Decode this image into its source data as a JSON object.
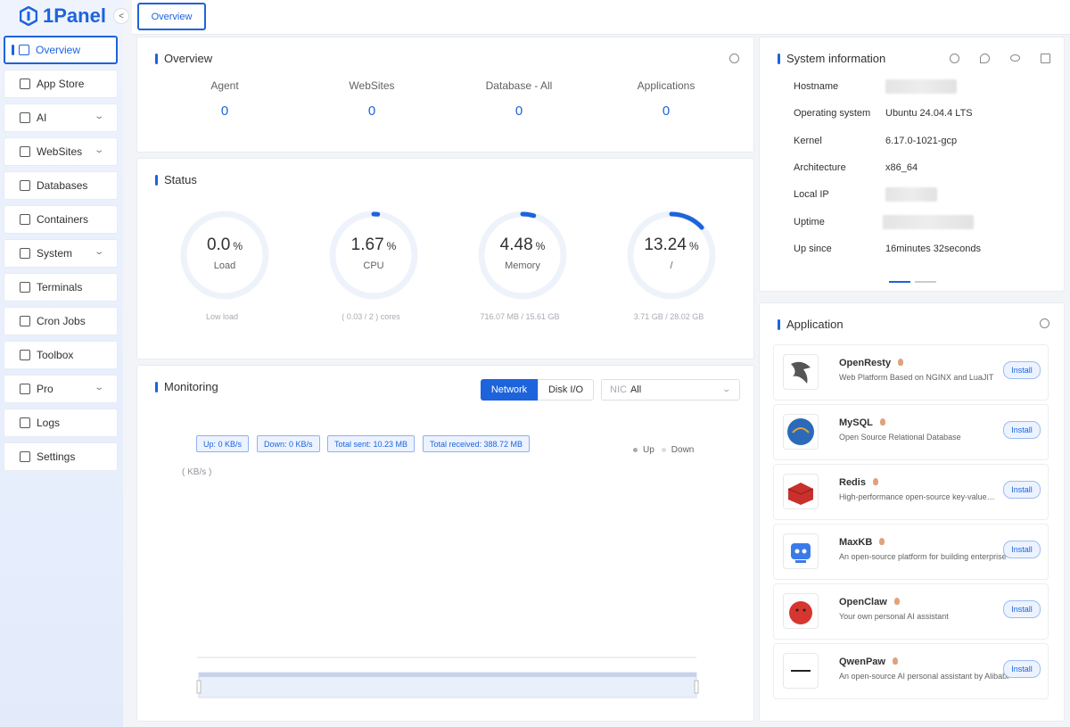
{
  "sidebar": {
    "logo": "1Panel",
    "menu": [
      {
        "label": "Overview",
        "active": true
      },
      {
        "label": "App Store"
      },
      {
        "label": "AI",
        "expandable": true
      },
      {
        "label": "WebSites",
        "expandable": true
      },
      {
        "label": "Databases"
      },
      {
        "label": "Containers"
      },
      {
        "label": "System",
        "expandable": true
      },
      {
        "label": "Terminals"
      },
      {
        "label": "Cron Jobs"
      },
      {
        "label": "Toolbox"
      },
      {
        "label": "Pro",
        "expandable": true
      },
      {
        "label": "Logs"
      },
      {
        "label": "Settings"
      }
    ]
  },
  "tabs": [
    "Overview"
  ],
  "overview": {
    "title": "Overview",
    "items": [
      {
        "label": "Agent",
        "value": 0
      },
      {
        "label": "WebSites",
        "value": 0
      },
      {
        "label": "Database - All",
        "value": 0
      },
      {
        "label": "Applications",
        "value": 0
      }
    ]
  },
  "status": {
    "title": "Status",
    "gauges": [
      {
        "value": 0,
        "value_label": "0.0",
        "unit": "%",
        "name": "Load",
        "detail": "Low load"
      },
      {
        "value": 1.67,
        "unit": "%",
        "name": "CPU",
        "detail": "( 0.03 / 2 ) cores"
      },
      {
        "value": 4.48,
        "unit": "%",
        "name": "Memory",
        "detail": "716.07 MB / 15.61 GB"
      },
      {
        "value": 13.24,
        "unit": "%",
        "name": "/",
        "detail": "3.71 GB / 28.02 GB"
      }
    ]
  },
  "monitoring": {
    "title": "Monitoring",
    "tabs": [
      "Network",
      "Disk I/O"
    ],
    "select_label": "NIC",
    "select_value": "All",
    "chips": [
      "Up: 0 KB/s",
      "Down: 0 KB/s",
      "Total sent: 10.23 MB",
      "Total received: 388.72 MB"
    ],
    "legend": [
      "Up",
      "Down"
    ],
    "unit": "( KB/s )"
  },
  "system_information": {
    "title": "System information",
    "rows": [
      {
        "label": "Hostname"
      },
      {
        "label": "Operating system",
        "value": "Ubuntu 24.04.4 LTS"
      },
      {
        "label": "Kernel",
        "value": "6.17.0-1021-gcp"
      },
      {
        "label": "Architecture",
        "value": "x86_64"
      },
      {
        "label": "Local IP"
      },
      {
        "label": "Uptime"
      },
      {
        "label": "Up since",
        "value": "16minutes 32seconds"
      }
    ]
  },
  "application": {
    "title": "Application",
    "button": "Install",
    "apps": [
      {
        "name": "OpenResty",
        "description": "Web Platform Based on NGINX and LuaJIT"
      },
      {
        "name": "MySQL",
        "description": "Open Source Relational Database"
      },
      {
        "name": "Redis",
        "description": "High-performance open-source key-value…"
      },
      {
        "name": "MaxKB",
        "description": "An open-source platform for building enterprise-…"
      },
      {
        "name": "OpenClaw",
        "description": "Your own personal AI assistant"
      },
      {
        "name": "QwenPaw",
        "description": "An open-source AI personal assistant by Alibaba"
      }
    ]
  }
}
